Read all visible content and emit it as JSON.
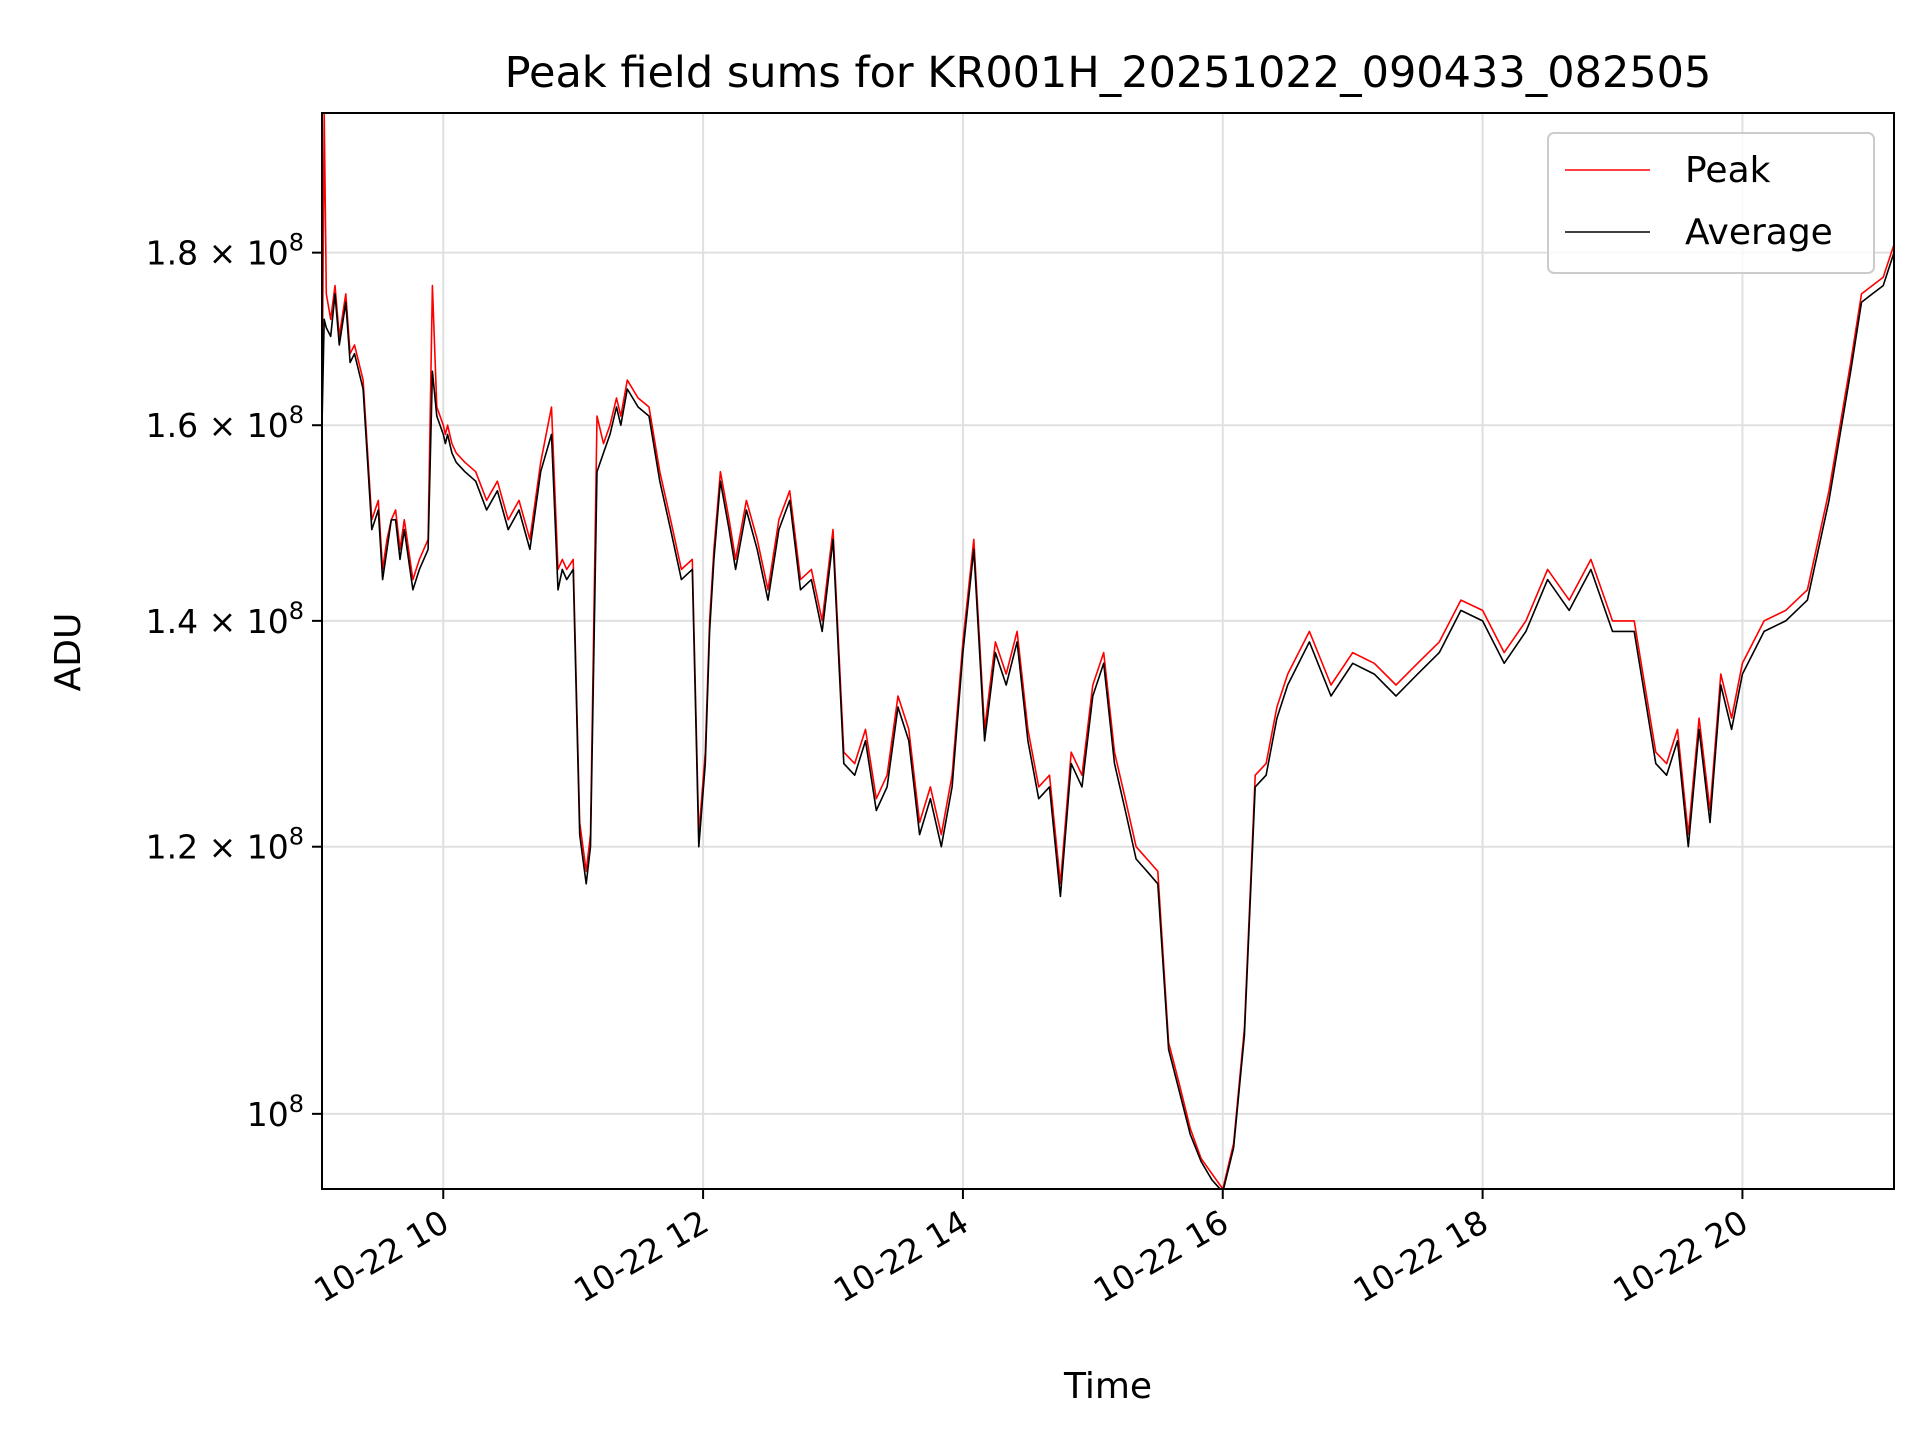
{
  "chart_data": {
    "type": "line",
    "title": "Peak field sums for KR001H_20251022_090433_082505",
    "xlabel": "Time",
    "ylabel": "ADU",
    "xlim": [
      "2025-10-22 09:04",
      "2025-10-22 21:10"
    ],
    "ylim": [
      95000000.0,
      198000000.0
    ],
    "y_scale": "log",
    "grid": true,
    "legend_position": "top-right",
    "x_ticks": [
      "10-22 10",
      "10-22 12",
      "10-22 14",
      "10-22 16",
      "10-22 18",
      "10-22 20"
    ],
    "y_ticks": [
      {
        "value": 100000000.0,
        "mantissa": "",
        "base": "10",
        "exp": "8"
      },
      {
        "value": 120000000.0,
        "mantissa": "1.2",
        "base": "10",
        "exp": "8"
      },
      {
        "value": 140000000.0,
        "mantissa": "1.4",
        "base": "10",
        "exp": "8"
      },
      {
        "value": 160000000.0,
        "mantissa": "1.6",
        "base": "10",
        "exp": "8"
      },
      {
        "value": 180000000.0,
        "mantissa": "1.8",
        "base": "10",
        "exp": "8"
      }
    ],
    "x": [
      "2025-10-22 09:04",
      "2025-10-22 09:05",
      "2025-10-22 09:06",
      "2025-10-22 09:08",
      "2025-10-22 09:10",
      "2025-10-22 09:12",
      "2025-10-22 09:15",
      "2025-10-22 09:17",
      "2025-10-22 09:19",
      "2025-10-22 09:21",
      "2025-10-22 09:23",
      "2025-10-22 09:27",
      "2025-10-22 09:30",
      "2025-10-22 09:32",
      "2025-10-22 09:34",
      "2025-10-22 09:36",
      "2025-10-22 09:38",
      "2025-10-22 09:40",
      "2025-10-22 09:42",
      "2025-10-22 09:46",
      "2025-10-22 09:49",
      "2025-10-22 09:53",
      "2025-10-22 09:55",
      "2025-10-22 09:57",
      "2025-10-22 10:00",
      "2025-10-22 10:01",
      "2025-10-22 10:02",
      "2025-10-22 10:04",
      "2025-10-22 10:06",
      "2025-10-22 10:10",
      "2025-10-22 10:15",
      "2025-10-22 10:20",
      "2025-10-22 10:25",
      "2025-10-22 10:30",
      "2025-10-22 10:35",
      "2025-10-22 10:40",
      "2025-10-22 10:45",
      "2025-10-22 10:50",
      "2025-10-22 10:53",
      "2025-10-22 10:55",
      "2025-10-22 10:57",
      "2025-10-22 11:00",
      "2025-10-22 11:03",
      "2025-10-22 11:06",
      "2025-10-22 11:08",
      "2025-10-22 11:11",
      "2025-10-22 11:14",
      "2025-10-22 11:17",
      "2025-10-22 11:20",
      "2025-10-22 11:22",
      "2025-10-22 11:25",
      "2025-10-22 11:30",
      "2025-10-22 11:35",
      "2025-10-22 11:40",
      "2025-10-22 11:45",
      "2025-10-22 11:50",
      "2025-10-22 11:55",
      "2025-10-22 11:58",
      "2025-10-22 12:01",
      "2025-10-22 12:03",
      "2025-10-22 12:05",
      "2025-10-22 12:08",
      "2025-10-22 12:12",
      "2025-10-22 12:15",
      "2025-10-22 12:20",
      "2025-10-22 12:25",
      "2025-10-22 12:30",
      "2025-10-22 12:35",
      "2025-10-22 12:40",
      "2025-10-22 12:45",
      "2025-10-22 12:50",
      "2025-10-22 12:55",
      "2025-10-22 13:00",
      "2025-10-22 13:05",
      "2025-10-22 13:10",
      "2025-10-22 13:15",
      "2025-10-22 13:20",
      "2025-10-22 13:25",
      "2025-10-22 13:30",
      "2025-10-22 13:35",
      "2025-10-22 13:40",
      "2025-10-22 13:45",
      "2025-10-22 13:50",
      "2025-10-22 13:55",
      "2025-10-22 14:00",
      "2025-10-22 14:05",
      "2025-10-22 14:10",
      "2025-10-22 14:15",
      "2025-10-22 14:20",
      "2025-10-22 14:25",
      "2025-10-22 14:30",
      "2025-10-22 14:35",
      "2025-10-22 14:40",
      "2025-10-22 14:45",
      "2025-10-22 14:50",
      "2025-10-22 14:55",
      "2025-10-22 15:00",
      "2025-10-22 15:05",
      "2025-10-22 15:10",
      "2025-10-22 15:15",
      "2025-10-22 15:20",
      "2025-10-22 15:25",
      "2025-10-22 15:30",
      "2025-10-22 15:35",
      "2025-10-22 15:40",
      "2025-10-22 15:45",
      "2025-10-22 15:50",
      "2025-10-22 15:55",
      "2025-10-22 16:00",
      "2025-10-22 16:05",
      "2025-10-22 16:10",
      "2025-10-22 16:15",
      "2025-10-22 16:20",
      "2025-10-22 16:25",
      "2025-10-22 16:30",
      "2025-10-22 16:40",
      "2025-10-22 16:50",
      "2025-10-22 17:00",
      "2025-10-22 17:10",
      "2025-10-22 17:20",
      "2025-10-22 17:30",
      "2025-10-22 17:40",
      "2025-10-22 17:50",
      "2025-10-22 18:00",
      "2025-10-22 18:10",
      "2025-10-22 18:20",
      "2025-10-22 18:30",
      "2025-10-22 18:40",
      "2025-10-22 18:50",
      "2025-10-22 19:00",
      "2025-10-22 19:10",
      "2025-10-22 19:20",
      "2025-10-22 19:25",
      "2025-10-22 19:30",
      "2025-10-22 19:35",
      "2025-10-22 19:40",
      "2025-10-22 19:45",
      "2025-10-22 19:50",
      "2025-10-22 19:55",
      "2025-10-22 20:00",
      "2025-10-22 20:10",
      "2025-10-22 20:20",
      "2025-10-22 20:30",
      "2025-10-22 20:40",
      "2025-10-22 20:50",
      "2025-10-22 20:55",
      "2025-10-22 21:00",
      "2025-10-22 21:05",
      "2025-10-22 21:10"
    ],
    "series": [
      {
        "name": "Peak",
        "color": "#ff0000",
        "values": [
          161000000,
          198000000,
          175000000,
          172000000,
          176000000,
          170000000,
          175000000,
          168000000,
          169000000,
          167000000,
          165000000,
          150000000,
          152000000,
          145000000,
          148000000,
          150000000,
          151000000,
          147000000,
          150000000,
          144000000,
          146000000,
          148000000,
          176000000,
          162000000,
          160000000,
          159000000,
          160000000,
          158000000,
          157000000,
          156000000,
          155000000,
          152000000,
          154000000,
          150000000,
          152000000,
          148000000,
          156000000,
          162000000,
          145000000,
          146000000,
          145000000,
          146000000,
          122000000,
          118000000,
          121000000,
          161000000,
          158000000,
          160000000,
          163000000,
          161000000,
          165000000,
          163000000,
          162000000,
          155000000,
          150000000,
          145000000,
          146000000,
          121000000,
          128000000,
          140000000,
          147000000,
          155000000,
          150000000,
          146000000,
          152000000,
          148000000,
          143000000,
          150000000,
          153000000,
          144000000,
          145000000,
          140000000,
          149000000,
          128000000,
          127000000,
          130000000,
          124000000,
          126000000,
          133000000,
          130000000,
          122000000,
          125000000,
          121000000,
          126000000,
          138000000,
          148000000,
          130000000,
          138000000,
          135000000,
          139000000,
          130000000,
          125000000,
          126000000,
          117000000,
          128000000,
          126000000,
          134000000,
          137000000,
          128000000,
          124000000,
          120000000,
          119000000,
          118000000,
          105000000,
          102000000,
          99000000,
          97000000,
          96000000,
          95000000,
          98000000,
          106000000,
          126000000,
          127000000,
          132000000,
          135000000,
          139000000,
          134000000,
          137000000,
          136000000,
          134000000,
          136000000,
          138000000,
          142000000,
          141000000,
          137000000,
          140000000,
          145000000,
          142000000,
          146000000,
          140000000,
          140000000,
          128000000,
          127000000,
          130000000,
          121000000,
          131000000,
          123000000,
          135000000,
          131000000,
          136000000,
          140000000,
          141000000,
          143000000,
          153000000,
          167000000,
          175000000,
          176000000,
          177000000,
          181000000
        ]
      },
      {
        "name": "Average",
        "color": "#000000",
        "values": [
          160000000,
          172000000,
          171000000,
          170000000,
          175000000,
          169000000,
          174000000,
          167000000,
          168000000,
          166000000,
          164000000,
          149000000,
          151000000,
          144000000,
          147000000,
          150000000,
          150000000,
          146000000,
          149000000,
          143000000,
          145000000,
          147000000,
          166000000,
          161000000,
          159000000,
          158000000,
          159000000,
          157000000,
          156000000,
          155000000,
          154000000,
          151000000,
          153000000,
          149000000,
          151000000,
          147000000,
          155000000,
          159000000,
          143000000,
          145000000,
          144000000,
          145000000,
          121000000,
          117000000,
          120000000,
          155000000,
          157000000,
          159000000,
          162000000,
          160000000,
          164000000,
          162000000,
          161000000,
          154000000,
          149000000,
          144000000,
          145000000,
          120000000,
          127000000,
          139000000,
          146000000,
          154000000,
          149000000,
          145000000,
          151000000,
          147000000,
          142000000,
          149000000,
          152000000,
          143000000,
          144000000,
          139000000,
          148000000,
          127000000,
          126000000,
          129000000,
          123000000,
          125000000,
          132000000,
          129000000,
          121000000,
          124000000,
          120000000,
          125000000,
          137000000,
          147000000,
          129000000,
          137000000,
          134000000,
          138000000,
          129000000,
          124000000,
          125000000,
          116000000,
          127000000,
          125000000,
          133000000,
          136000000,
          127000000,
          123000000,
          119000000,
          118000000,
          117000000,
          104500000,
          101500000,
          98600000,
          96800000,
          95600000,
          94800000,
          97700000,
          105500000,
          125000000,
          126000000,
          131000000,
          134000000,
          138000000,
          133000000,
          136000000,
          135000000,
          133000000,
          135000000,
          137000000,
          141000000,
          140000000,
          136000000,
          139000000,
          144000000,
          141000000,
          145000000,
          139000000,
          139000000,
          127000000,
          126000000,
          129000000,
          120000000,
          130000000,
          122000000,
          134000000,
          130000000,
          135000000,
          139000000,
          140000000,
          142000000,
          152000000,
          166000000,
          174000000,
          175000000,
          176000000,
          180000000
        ]
      }
    ]
  }
}
